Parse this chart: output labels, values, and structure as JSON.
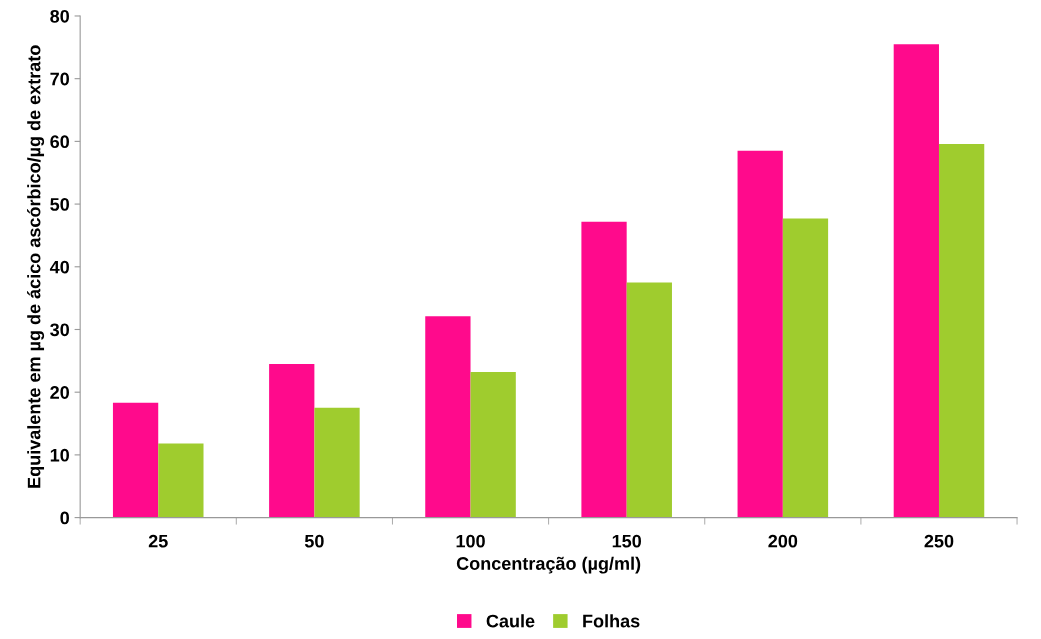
{
  "chart_data": {
    "type": "bar",
    "xlabel": "Concentração (µg/ml)",
    "ylabel": "Equivalente em µg de ácico ascórbico/µg de extrato",
    "categories": [
      "25",
      "50",
      "100",
      "150",
      "200",
      "250"
    ],
    "series": [
      {
        "name": "Caule",
        "color": "#ff0a8c",
        "values": [
          18.3,
          24.5,
          32.1,
          47.2,
          58.5,
          75.5
        ]
      },
      {
        "name": "Folhas",
        "color": "#9fcc2e",
        "values": [
          11.8,
          17.5,
          23.2,
          37.5,
          47.7,
          59.6
        ]
      }
    ],
    "ylim": [
      0,
      80
    ],
    "yticks": [
      0,
      10,
      20,
      30,
      40,
      50,
      60,
      70,
      80
    ],
    "grid": false,
    "legend": "bottom"
  }
}
